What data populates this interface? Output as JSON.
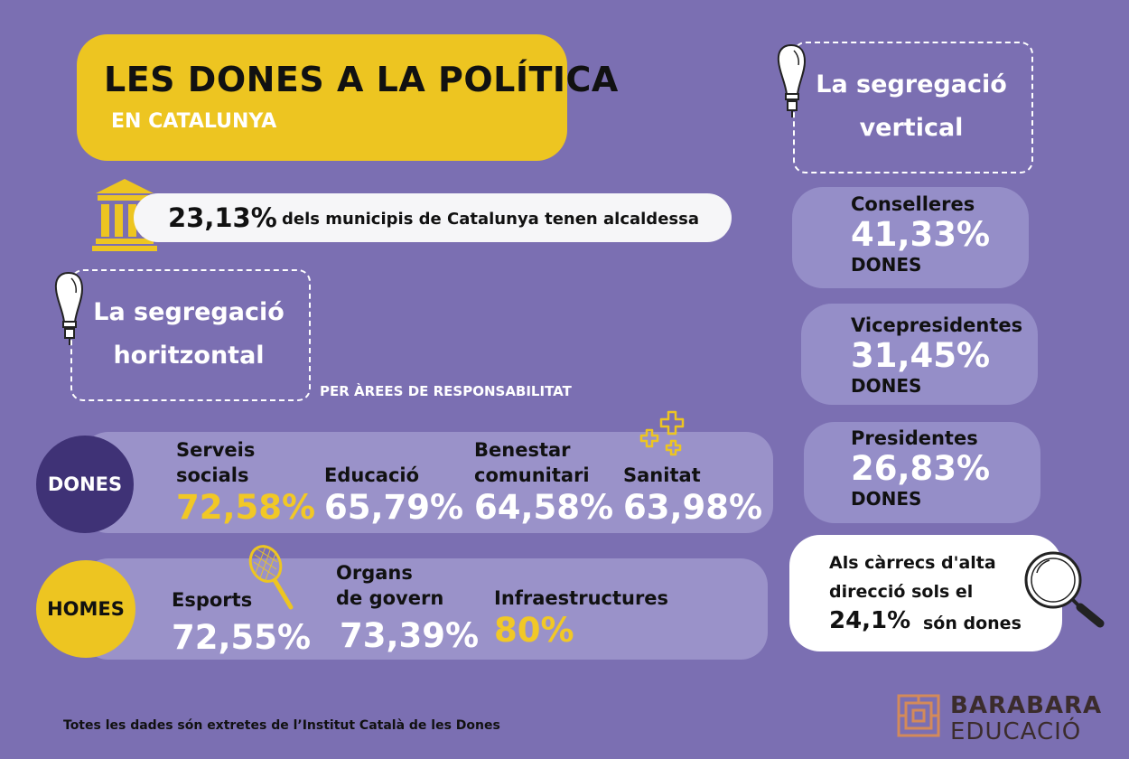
{
  "title": {
    "main": "LES DONES A LA POLÍTICA",
    "sub": "EN CATALUNYA"
  },
  "municipis": {
    "pct": "23,13%",
    "text": "dels municipis de Catalunya tenen alcaldessa"
  },
  "horitzontal": {
    "line1": "La segregació",
    "line2": "horitzontal",
    "label": "PER ÀREES DE RESPONSABILITAT"
  },
  "vertical": {
    "line1": "La segregació",
    "line2": "vertical"
  },
  "dones": {
    "badge": "DONES",
    "items": [
      {
        "line1": "Serveis",
        "line2": "socials",
        "pct": "72,58%"
      },
      {
        "line1": "",
        "line2": "Educació",
        "pct": "65,79%"
      },
      {
        "line1": "Benestar",
        "line2": "comunitari",
        "pct": "64,58%"
      },
      {
        "line1": "",
        "line2": "Sanitat",
        "pct": "63,98%"
      }
    ]
  },
  "homes": {
    "badge": "HOMES",
    "items": [
      {
        "line1": "",
        "line2": "Esports",
        "pct": "72,55%"
      },
      {
        "line1": "Organs",
        "line2": "de govern",
        "pct": "73,39%"
      },
      {
        "line1": "",
        "line2": "Infraestructures",
        "pct": "80%"
      }
    ]
  },
  "stats": [
    {
      "label": "Conselleres",
      "pct": "41,33%",
      "sub": "DONES"
    },
    {
      "label": "Vicepresidentes",
      "pct": "31,45%",
      "sub": "DONES"
    },
    {
      "label": "Presidentes",
      "pct": "26,83%",
      "sub": "DONES"
    }
  ],
  "alta": {
    "line1": "Als càrrecs d'alta",
    "line2": "direcció sols el",
    "pct": "24,1%",
    "tail": "són dones"
  },
  "footer": "Totes les dades són extretes de l’Institut Català de les Dones",
  "brand": {
    "line1": "BARABARA",
    "line2": "EDUCACIÓ"
  },
  "colors": {
    "background": "#7b6fb2",
    "yellow": "#edc521",
    "dark_purple": "#3f3276",
    "bar": "#9a92c9",
    "brand": "#d38a5a"
  },
  "icons": [
    "building-icon",
    "lightbulb-icon",
    "plus-crosses-icon",
    "tennis-racket-icon",
    "magnifier-icon",
    "brand-logo-icon"
  ]
}
